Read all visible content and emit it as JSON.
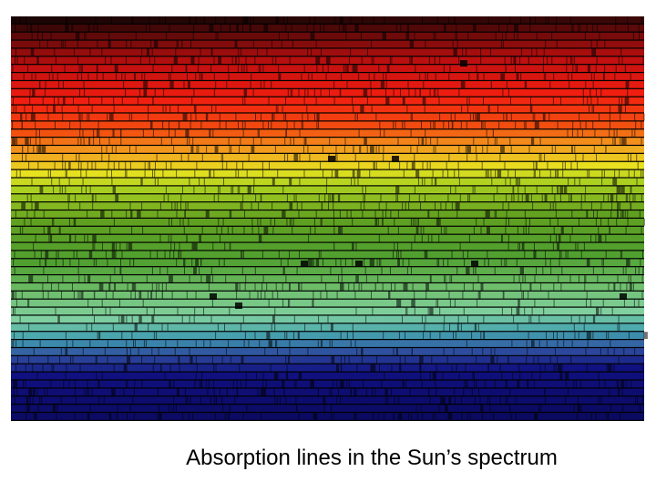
{
  "caption": "Absorption lines in the Sun’s spectrum"
}
